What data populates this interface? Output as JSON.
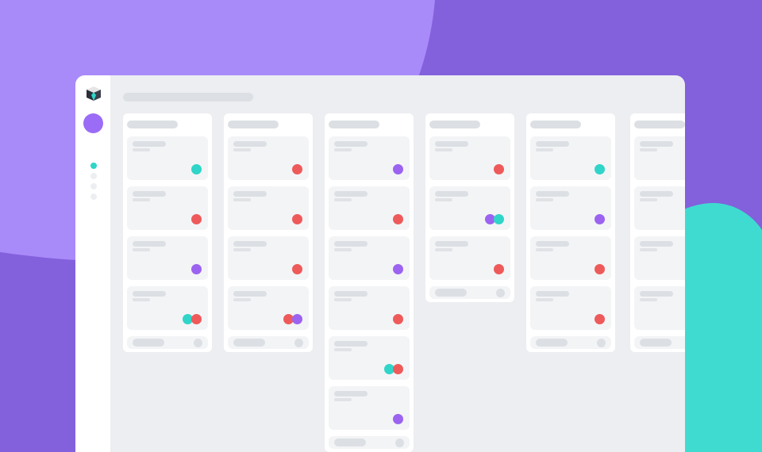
{
  "colors": {
    "bg": "#8360dc",
    "bg_blob_purple": "#a98af9",
    "bg_blob_teal": "#40dbd0",
    "avatar": "#9b6cf5",
    "teal": "#2fd5c8",
    "red": "#ee5a5a",
    "purple": "#9b63f0",
    "nav_active": "#2fd5c8"
  },
  "sidebar": {
    "logo_icon": "cube-logo-icon",
    "nav_items": [
      {
        "active": true
      },
      {
        "active": false
      },
      {
        "active": false
      },
      {
        "active": false
      }
    ]
  },
  "board": {
    "columns": [
      {
        "cards": [
          [
            "teal"
          ],
          [
            "red"
          ],
          [
            "purple"
          ],
          [
            "teal",
            "red"
          ]
        ],
        "footer_action": true
      },
      {
        "cards": [
          [
            "red"
          ],
          [
            "red"
          ],
          [
            "red"
          ],
          [
            "red",
            "purple"
          ]
        ],
        "footer_action": true
      },
      {
        "cards": [
          [
            "purple"
          ],
          [
            "red"
          ],
          [
            "purple"
          ],
          [
            "red"
          ],
          [
            "teal",
            "red"
          ],
          [
            "purple"
          ]
        ],
        "footer_action": true
      },
      {
        "cards": [
          [
            "red"
          ],
          [
            "purple",
            "teal"
          ],
          [
            "red"
          ]
        ],
        "footer_action": true
      },
      {
        "cards": [
          [
            "teal"
          ],
          [
            "purple"
          ],
          [
            "red"
          ],
          [
            "red"
          ]
        ],
        "footer_action": true
      },
      {
        "cards": [
          [],
          [],
          [],
          []
        ],
        "footer_action": false
      }
    ]
  }
}
